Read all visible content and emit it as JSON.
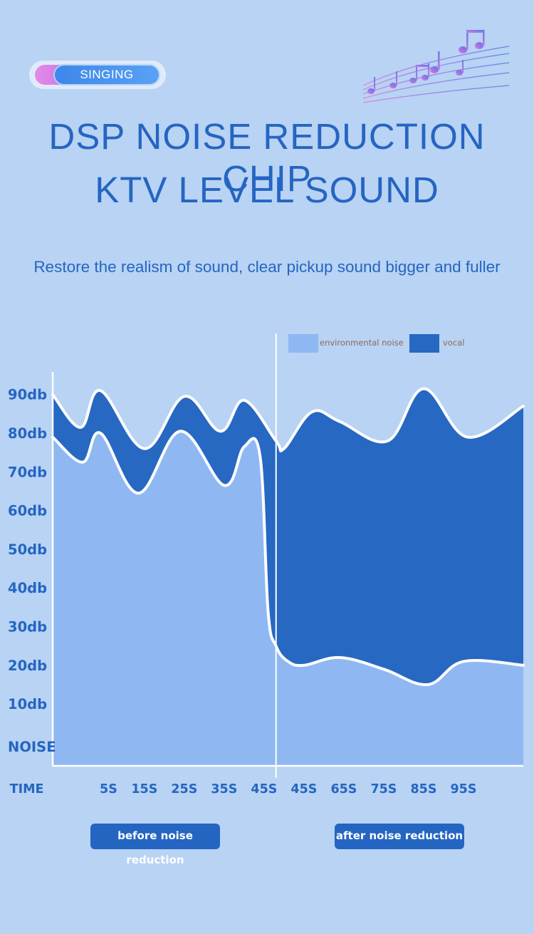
{
  "badge": {
    "label": "SINGING"
  },
  "headline": {
    "line1": "DSP NOISE REDUCTION CHIP",
    "line2": "KTV LEVEL SOUND"
  },
  "subtitle": "Restore the realism of sound, clear pickup sound bigger and fuller",
  "phases": {
    "before_label": "before noise reduction",
    "after_label": "after noise reduction"
  },
  "colors": {
    "background": "#b8d3f3",
    "accent": "#2565c2",
    "environmental_noise": "#8fb8f3",
    "vocal": "#2768c3",
    "curve": "#ffffff"
  },
  "icons": [
    "music-notes-icon"
  ],
  "chart_data": {
    "type": "area",
    "title": "",
    "xlabel": "TIME",
    "ylabel": "",
    "ylim": [
      0,
      100
    ],
    "y_ticks": [
      {
        "label": "NOISE",
        "value": 5
      },
      {
        "label": "10db",
        "value": 16
      },
      {
        "label": "20db",
        "value": 26
      },
      {
        "label": "30db",
        "value": 36
      },
      {
        "label": "40db",
        "value": 46
      },
      {
        "label": "50db",
        "value": 56
      },
      {
        "label": "60db",
        "value": 66
      },
      {
        "label": "70db",
        "value": 76
      },
      {
        "label": "80db",
        "value": 86
      },
      {
        "label": "90db",
        "value": 96
      }
    ],
    "x_range": [
      0,
      118
    ],
    "x_ticks": [
      {
        "label": "TIME",
        "x": -6.5
      },
      {
        "label": "5S",
        "x": 14
      },
      {
        "label": "15S",
        "x": 23
      },
      {
        "label": "25S",
        "x": 33
      },
      {
        "label": "35S",
        "x": 43
      },
      {
        "label": "45S",
        "x": 53
      },
      {
        "label": "45S",
        "x": 63
      },
      {
        "label": "65S",
        "x": 73
      },
      {
        "label": "75S",
        "x": 83
      },
      {
        "label": "85S",
        "x": 93
      },
      {
        "label": "95S",
        "x": 103
      }
    ],
    "divider_x": 56,
    "legend_placement": "top-right",
    "series": [
      {
        "name": "environmental noise",
        "points": [
          [
            0,
            85
          ],
          [
            7.5,
            78.5
          ],
          [
            12,
            86
          ],
          [
            21.5,
            70.5
          ],
          [
            32,
            86.5
          ],
          [
            43,
            72.5
          ],
          [
            48,
            82.5
          ],
          [
            52,
            80
          ],
          [
            54,
            40
          ],
          [
            56,
            31
          ],
          [
            59,
            27
          ],
          [
            63,
            26
          ],
          [
            72,
            28
          ],
          [
            83,
            25
          ],
          [
            94,
            21
          ],
          [
            103,
            27
          ],
          [
            118,
            26
          ]
        ]
      },
      {
        "name": "vocal",
        "points": [
          [
            0,
            96
          ],
          [
            7,
            87.5
          ],
          [
            12,
            97
          ],
          [
            23,
            82
          ],
          [
            33,
            95.5
          ],
          [
            42,
            86.5
          ],
          [
            48,
            94.5
          ],
          [
            56,
            84
          ],
          [
            58,
            82
          ],
          [
            65,
            91.5
          ],
          [
            72,
            89
          ],
          [
            84,
            84
          ],
          [
            93,
            97.5
          ],
          [
            104,
            85
          ],
          [
            118,
            93
          ]
        ]
      }
    ]
  }
}
